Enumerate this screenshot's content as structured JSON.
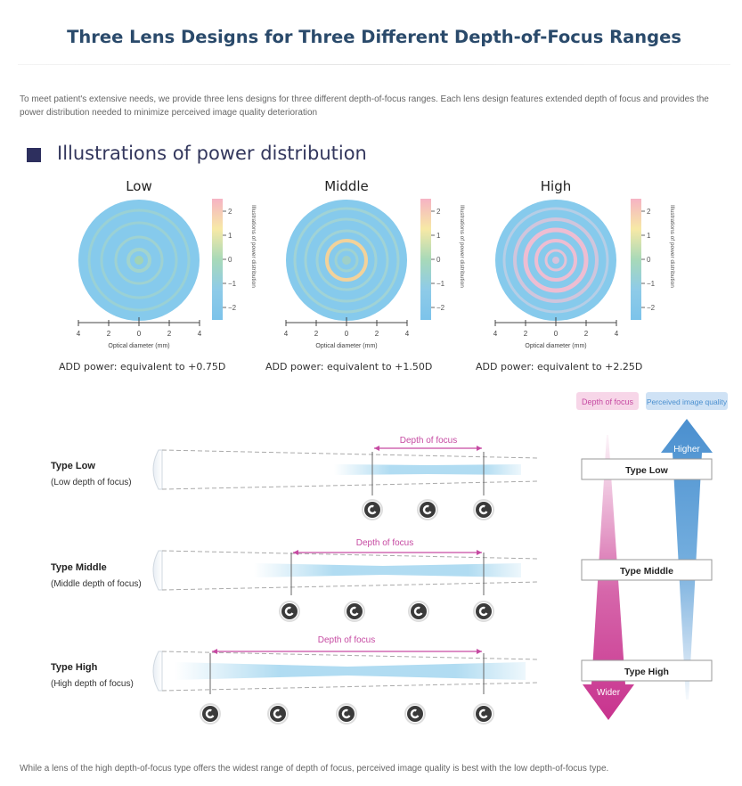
{
  "page": {
    "title": "Three Lens Designs for Three Different Depth-of-Focus Ranges",
    "intro": "To meet patient's extensive needs, we provide three lens designs for three different depth-of-focus ranges. Each lens design features extended depth of focus and provides the power distribution needed to minimize perceived image quality deterioration",
    "footer": "While a lens of the high depth-of-focus type offers the widest range of depth of focus, perceived image quality is best with the low depth-of-focus type."
  },
  "power_section": {
    "heading": "Illustrations of power distribution",
    "colorbar_label": "Illustrations of power distribution",
    "colorbar_ticks": [
      "2",
      "1",
      "0",
      "−1",
      "−2"
    ],
    "axis_label": "Optical diameter (mm)",
    "axis_ticks": [
      "4",
      "2",
      "0",
      "2",
      "4"
    ],
    "lenses": [
      {
        "title": "Low",
        "caption": "ADD power: equivalent to +0.75D"
      },
      {
        "title": "Middle",
        "caption": "ADD power: equivalent to +1.50D"
      },
      {
        "title": "High",
        "caption": "ADD power: equivalent to +2.25D"
      }
    ]
  },
  "dof_section": {
    "focus_label": "Depth of focus",
    "rows": [
      {
        "type": "Type Low",
        "sub": "(Low depth of focus)",
        "targets": 3
      },
      {
        "type": "Type Middle",
        "sub": "(Middle depth of focus)",
        "targets": 4
      },
      {
        "type": "Type High",
        "sub": "(High depth of focus)",
        "targets": 5
      }
    ],
    "legend": {
      "depth_label": "Depth of focus",
      "quality_label": "Perceived image quality",
      "higher": "Higher",
      "wider": "Wider",
      "types": [
        "Type Low",
        "Type Middle",
        "Type High"
      ]
    },
    "colors": {
      "depth": "#c8338e",
      "quality": "#4a8fcf",
      "beam": "#a8d8f0"
    }
  }
}
